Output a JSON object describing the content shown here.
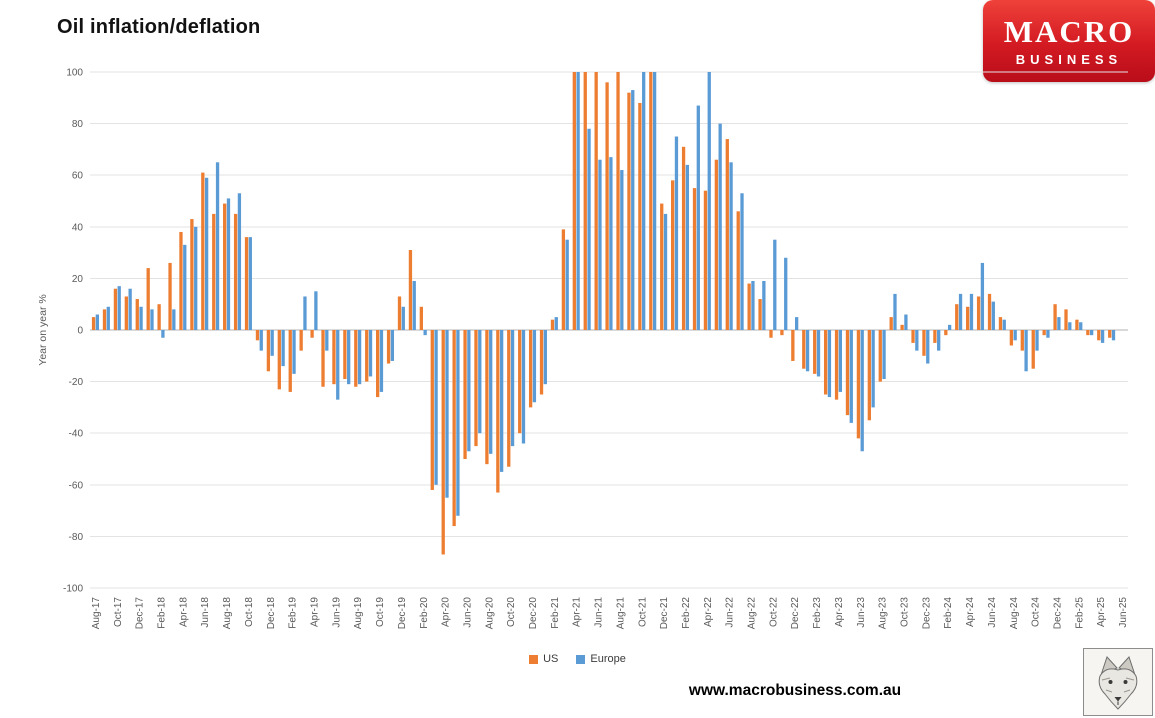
{
  "logo": {
    "line1": "MACRO",
    "line2": "BUSINESS"
  },
  "footer": {
    "url": "www.macrobusiness.com.au"
  },
  "chart_data": {
    "type": "bar",
    "title": "Oil inflation/deflation",
    "xlabel": "",
    "ylabel": "Year on year %",
    "ylim": [
      -100,
      100
    ],
    "ytick_step": 20,
    "xtick_every": 2,
    "grid": true,
    "legend_position": "bottom",
    "note": "Monthly year-on-year % change; bars clipped at axis limit of 100",
    "categories": [
      "Aug-17",
      "Sep-17",
      "Oct-17",
      "Nov-17",
      "Dec-17",
      "Jan-18",
      "Feb-18",
      "Mar-18",
      "Apr-18",
      "May-18",
      "Jun-18",
      "Jul-18",
      "Aug-18",
      "Sep-18",
      "Oct-18",
      "Nov-18",
      "Dec-18",
      "Jan-19",
      "Feb-19",
      "Mar-19",
      "Apr-19",
      "May-19",
      "Jun-19",
      "Jul-19",
      "Aug-19",
      "Sep-19",
      "Oct-19",
      "Nov-19",
      "Dec-19",
      "Jan-20",
      "Feb-20",
      "Mar-20",
      "Apr-20",
      "May-20",
      "Jun-20",
      "Jul-20",
      "Aug-20",
      "Sep-20",
      "Oct-20",
      "Nov-20",
      "Dec-20",
      "Jan-21",
      "Feb-21",
      "Mar-21",
      "Apr-21",
      "May-21",
      "Jun-21",
      "Jul-21",
      "Aug-21",
      "Sep-21",
      "Oct-21",
      "Nov-21",
      "Dec-21",
      "Jan-22",
      "Feb-22",
      "Mar-22",
      "Apr-22",
      "May-22",
      "Jun-22",
      "Jul-22",
      "Aug-22",
      "Sep-22",
      "Oct-22",
      "Nov-22",
      "Dec-22",
      "Jan-23",
      "Feb-23",
      "Mar-23",
      "Apr-23",
      "May-23",
      "Jun-23",
      "Jul-23",
      "Aug-23",
      "Sep-23",
      "Oct-23",
      "Nov-23",
      "Dec-23",
      "Jan-24",
      "Feb-24",
      "Mar-24",
      "Apr-24",
      "May-24",
      "Jun-24",
      "Jul-24",
      "Aug-24",
      "Sep-24",
      "Oct-24",
      "Nov-24",
      "Dec-24",
      "Jan-25",
      "Feb-25",
      "Mar-25",
      "Apr-25",
      "May-25",
      "Jun-25"
    ],
    "series": [
      {
        "name": "US",
        "color": "#ED7D31",
        "values": [
          5,
          8,
          16,
          13,
          12,
          24,
          10,
          26,
          38,
          43,
          61,
          45,
          49,
          45,
          36,
          -4,
          -16,
          -23,
          -24,
          -8,
          -3,
          -22,
          -21,
          -19,
          -22,
          -20,
          -26,
          -13,
          13,
          31,
          9,
          -62,
          -87,
          -76,
          -50,
          -45,
          -52,
          -63,
          -53,
          -40,
          -30,
          -25,
          4,
          39,
          100,
          100,
          100,
          96,
          100,
          92,
          88,
          100,
          49,
          58,
          71,
          55,
          54,
          66,
          74,
          46,
          18,
          12,
          -3,
          -2,
          -12,
          -15,
          -17,
          -25,
          -27,
          -33,
          -42,
          -35,
          -20,
          5,
          2,
          -5,
          -10,
          -5,
          -2,
          10,
          9,
          13,
          14,
          5,
          -6,
          -8,
          -15,
          -2,
          10,
          8,
          4,
          -2,
          -4,
          -3,
          null
        ]
      },
      {
        "name": "Europe",
        "color": "#5B9BD5",
        "values": [
          6,
          9,
          17,
          16,
          9,
          8,
          -3,
          8,
          33,
          40,
          59,
          65,
          51,
          53,
          36,
          -8,
          -10,
          -14,
          -17,
          13,
          15,
          -8,
          -27,
          -21,
          -21,
          -18,
          -24,
          -12,
          9,
          19,
          -2,
          -60,
          -65,
          -72,
          -47,
          -40,
          -48,
          -55,
          -45,
          -44,
          -28,
          -21,
          5,
          35,
          100,
          78,
          66,
          67,
          62,
          93,
          100,
          100,
          45,
          75,
          64,
          87,
          100,
          80,
          65,
          53,
          19,
          19,
          35,
          28,
          5,
          -16,
          -18,
          -26,
          -24,
          -36,
          -47,
          -30,
          -19,
          14,
          6,
          -8,
          -13,
          -8,
          2,
          14,
          14,
          26,
          11,
          4,
          -4,
          -16,
          -8,
          -3,
          5,
          3,
          3,
          -2,
          -5,
          -4,
          null
        ]
      }
    ]
  }
}
